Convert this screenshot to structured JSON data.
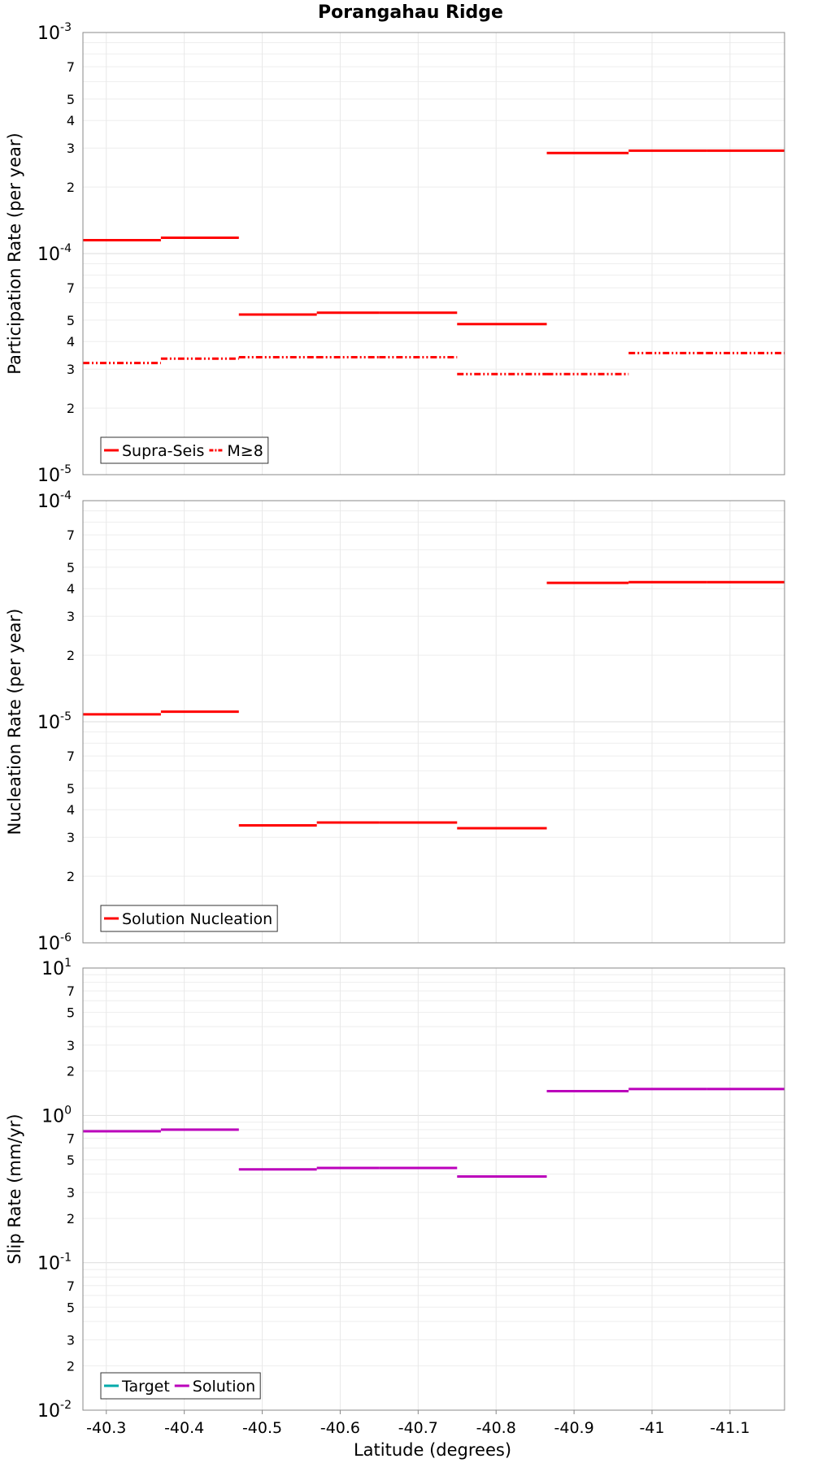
{
  "chart_data": {
    "title": "Porangahau Ridge",
    "xlabel": "Latitude (degrees)",
    "x_ticks": [
      "-40.3",
      "-40.4",
      "-40.5",
      "-40.6",
      "-40.7",
      "-40.8",
      "-40.9",
      "-41",
      "-41.1"
    ],
    "x_tick_values": [
      -40.3,
      -40.4,
      -40.5,
      -40.6,
      -40.7,
      -40.8,
      -40.9,
      -41.0,
      -41.1
    ],
    "xlim": [
      -40.27,
      -41.17
    ],
    "panels": [
      {
        "type": "line",
        "ylabel": "Participation Rate (per year)",
        "yscale": "log",
        "ylim": [
          1e-05,
          0.001
        ],
        "major_labels": [
          {
            "base": "10",
            "exp": "-3"
          },
          {
            "base": "10",
            "exp": "-4"
          },
          {
            "base": "10",
            "exp": "-5"
          }
        ],
        "minor_labels": [
          "2",
          "3",
          "4",
          "5",
          "7"
        ],
        "legend": {
          "position": "bottom-left",
          "entries": [
            {
              "label": "Supra-Seis",
              "color": "#ff0000",
              "dash": "solid"
            },
            {
              "label": "M≥8",
              "color": "#ff0000",
              "dash": "dashdotdot"
            }
          ]
        },
        "series": [
          {
            "name": "Supra-Seis",
            "color": "#ff0000",
            "dash": "solid",
            "segments": [
              {
                "x": [
                  -40.27,
                  -40.37
                ],
                "y": 0.000115
              },
              {
                "x": [
                  -40.37,
                  -40.47
                ],
                "y": 0.000118
              },
              {
                "x": [
                  -40.47,
                  -40.57
                ],
                "y": 5.3e-05
              },
              {
                "x": [
                  -40.57,
                  -40.65
                ],
                "y": 5.4e-05
              },
              {
                "x": [
                  -40.65,
                  -40.75
                ],
                "y": 5.4e-05
              },
              {
                "x": [
                  -40.75,
                  -40.865
                ],
                "y": 4.8e-05
              },
              {
                "x": [
                  -40.865,
                  -40.97
                ],
                "y": 0.000285
              },
              {
                "x": [
                  -40.97,
                  -41.07
                ],
                "y": 0.000292
              },
              {
                "x": [
                  -41.07,
                  -41.17
                ],
                "y": 0.000292
              }
            ]
          },
          {
            "name": "M≥8",
            "color": "#ff0000",
            "dash": "dashdotdot",
            "segments": [
              {
                "x": [
                  -40.27,
                  -40.37
                ],
                "y": 3.2e-05
              },
              {
                "x": [
                  -40.37,
                  -40.47
                ],
                "y": 3.35e-05
              },
              {
                "x": [
                  -40.47,
                  -40.57
                ],
                "y": 3.4e-05
              },
              {
                "x": [
                  -40.57,
                  -40.65
                ],
                "y": 3.4e-05
              },
              {
                "x": [
                  -40.65,
                  -40.75
                ],
                "y": 3.4e-05
              },
              {
                "x": [
                  -40.75,
                  -40.865
                ],
                "y": 2.85e-05
              },
              {
                "x": [
                  -40.865,
                  -40.97
                ],
                "y": 2.85e-05
              },
              {
                "x": [
                  -40.97,
                  -41.07
                ],
                "y": 3.55e-05
              },
              {
                "x": [
                  -41.07,
                  -41.17
                ],
                "y": 3.55e-05
              }
            ]
          }
        ]
      },
      {
        "type": "line",
        "ylabel": "Nucleation Rate (per year)",
        "yscale": "log",
        "ylim": [
          1e-06,
          0.0001
        ],
        "major_labels": [
          {
            "base": "10",
            "exp": "-4"
          },
          {
            "base": "10",
            "exp": "-5"
          },
          {
            "base": "10",
            "exp": "-6"
          }
        ],
        "minor_labels": [
          "2",
          "3",
          "4",
          "5",
          "7"
        ],
        "legend": {
          "position": "bottom-left",
          "entries": [
            {
              "label": "Solution Nucleation",
              "color": "#ff0000",
              "dash": "solid"
            }
          ]
        },
        "series": [
          {
            "name": "Solution Nucleation",
            "color": "#ff0000",
            "dash": "solid",
            "segments": [
              {
                "x": [
                  -40.27,
                  -40.37
                ],
                "y": 1.08e-05
              },
              {
                "x": [
                  -40.37,
                  -40.47
                ],
                "y": 1.11e-05
              },
              {
                "x": [
                  -40.47,
                  -40.57
                ],
                "y": 3.4e-06
              },
              {
                "x": [
                  -40.57,
                  -40.65
                ],
                "y": 3.5e-06
              },
              {
                "x": [
                  -40.65,
                  -40.75
                ],
                "y": 3.5e-06
              },
              {
                "x": [
                  -40.75,
                  -40.865
                ],
                "y": 3.3e-06
              },
              {
                "x": [
                  -40.865,
                  -40.97
                ],
                "y": 4.25e-05
              },
              {
                "x": [
                  -40.97,
                  -41.07
                ],
                "y": 4.28e-05
              },
              {
                "x": [
                  -41.07,
                  -41.17
                ],
                "y": 4.28e-05
              }
            ]
          }
        ]
      },
      {
        "type": "line",
        "ylabel": "Slip Rate (mm/yr)",
        "yscale": "log",
        "ylim": [
          0.01,
          10
        ],
        "major_labels": [
          {
            "base": "10",
            "exp": "1"
          },
          {
            "base": "10",
            "exp": "0"
          },
          {
            "base": "10",
            "exp": "-1"
          },
          {
            "base": "10",
            "exp": "-2"
          }
        ],
        "minor_labels": [
          "2",
          "3",
          "5",
          "7"
        ],
        "legend": {
          "position": "bottom-left",
          "entries": [
            {
              "label": "Target",
              "color": "#00aaaa",
              "dash": "solid"
            },
            {
              "label": "Solution",
              "color": "#bb00bb",
              "dash": "solid"
            }
          ]
        },
        "series": [
          {
            "name": "Solution",
            "color": "#bb00bb",
            "dash": "solid",
            "segments": [
              {
                "x": [
                  -40.27,
                  -40.37
                ],
                "y": 0.78
              },
              {
                "x": [
                  -40.37,
                  -40.47
                ],
                "y": 0.8
              },
              {
                "x": [
                  -40.47,
                  -40.57
                ],
                "y": 0.43
              },
              {
                "x": [
                  -40.57,
                  -40.65
                ],
                "y": 0.44
              },
              {
                "x": [
                  -40.65,
                  -40.75
                ],
                "y": 0.44
              },
              {
                "x": [
                  -40.75,
                  -40.865
                ],
                "y": 0.385
              },
              {
                "x": [
                  -40.865,
                  -40.97
                ],
                "y": 1.46
              },
              {
                "x": [
                  -40.97,
                  -41.07
                ],
                "y": 1.51
              },
              {
                "x": [
                  -41.07,
                  -41.17
                ],
                "y": 1.51
              }
            ]
          }
        ]
      }
    ]
  }
}
